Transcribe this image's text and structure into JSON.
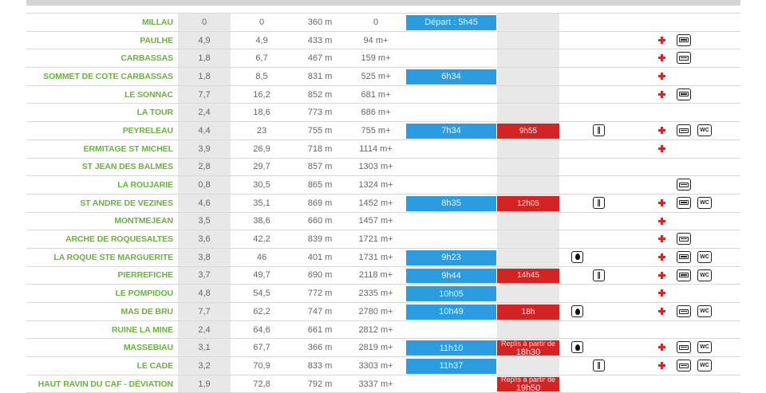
{
  "rows": [
    {
      "name": "MILLAU",
      "d1": "0",
      "d2": "0",
      "alt": "360 m",
      "dplus": "0",
      "time": "Départ : 5h45",
      "barrier": "",
      "drop": false,
      "fork": false,
      "cross": false,
      "bus": false,
      "wc": false
    },
    {
      "name": "PAULHE",
      "d1": "4,9",
      "d2": "4,9",
      "alt": "433 m",
      "dplus": "94 m+",
      "time": "",
      "barrier": "",
      "drop": false,
      "fork": false,
      "cross": true,
      "bus": true,
      "wc": false
    },
    {
      "name": "CARBASSAS",
      "d1": "1,8",
      "d2": "6,7",
      "alt": "467 m",
      "dplus": "159 m+",
      "time": "",
      "barrier": "",
      "drop": false,
      "fork": false,
      "cross": true,
      "bus": true,
      "wc": false
    },
    {
      "name": "SOMMET DE COTE CARBASSAS",
      "d1": "1,8",
      "d2": "8,5",
      "alt": "831 m",
      "dplus": "525 m+",
      "time": "6h34",
      "barrier": "",
      "drop": false,
      "fork": false,
      "cross": true,
      "bus": false,
      "wc": false
    },
    {
      "name": "LE SONNAC",
      "d1": "7,7",
      "d2": "16,2",
      "alt": "852 m",
      "dplus": "681 m+",
      "time": "",
      "barrier": "",
      "drop": false,
      "fork": false,
      "cross": true,
      "bus": true,
      "wc": false
    },
    {
      "name": "LA TOUR",
      "d1": "2,4",
      "d2": "18,6",
      "alt": "773 m",
      "dplus": "686 m+",
      "time": "",
      "barrier": "",
      "drop": false,
      "fork": false,
      "cross": false,
      "bus": false,
      "wc": false
    },
    {
      "name": "PEYRELEAU",
      "d1": "4,4",
      "d2": "23",
      "alt": "755 m",
      "dplus": "755 m+",
      "time": "7h34",
      "barrier": "9h55",
      "drop": false,
      "fork": true,
      "cross": true,
      "bus": true,
      "wc": true
    },
    {
      "name": "ERMITAGE ST MICHEL",
      "d1": "3,9",
      "d2": "26,9",
      "alt": "718 m",
      "dplus": "1114 m+",
      "time": "",
      "barrier": "",
      "drop": false,
      "fork": false,
      "cross": true,
      "bus": false,
      "wc": false
    },
    {
      "name": "ST JEAN DES BALMES",
      "d1": "2,8",
      "d2": "29,7",
      "alt": "857 m",
      "dplus": "1303 m+",
      "time": "",
      "barrier": "",
      "drop": false,
      "fork": false,
      "cross": false,
      "bus": false,
      "wc": false
    },
    {
      "name": "LA ROUJARIE",
      "d1": "0,8",
      "d2": "30,5",
      "alt": "865 m",
      "dplus": "1324 m+",
      "time": "",
      "barrier": "",
      "drop": false,
      "fork": false,
      "cross": false,
      "bus": true,
      "wc": false
    },
    {
      "name": "ST ANDRE DE VEZINES",
      "d1": "4,6",
      "d2": "35,1",
      "alt": "869 m",
      "dplus": "1452 m+",
      "time": "8h35",
      "barrier": "12h05",
      "drop": false,
      "fork": true,
      "cross": true,
      "bus": true,
      "wc": true
    },
    {
      "name": "MONTMEJEAN",
      "d1": "3,5",
      "d2": "38,6",
      "alt": "660 m",
      "dplus": "1457 m+",
      "time": "",
      "barrier": "",
      "drop": false,
      "fork": false,
      "cross": true,
      "bus": false,
      "wc": false
    },
    {
      "name": "ARCHE DE ROQUESALTES",
      "d1": "3,6",
      "d2": "42,2",
      "alt": "839 m",
      "dplus": "1721 m+",
      "time": "",
      "barrier": "",
      "drop": false,
      "fork": false,
      "cross": true,
      "bus": true,
      "wc": false
    },
    {
      "name": "LA ROQUE STE MARGUERITE",
      "d1": "3,8",
      "d2": "46",
      "alt": "401 m",
      "dplus": "1731 m+",
      "time": "9h23",
      "barrier": "",
      "drop": true,
      "fork": false,
      "cross": true,
      "bus": true,
      "wc": true
    },
    {
      "name": "PIERREFICHE",
      "d1": "3,7",
      "d2": "49,7",
      "alt": "690 m",
      "dplus": "2118 m+",
      "time": "9h44",
      "barrier": "14h45",
      "drop": false,
      "fork": true,
      "cross": true,
      "bus": true,
      "wc": true
    },
    {
      "name": "LE POMPIDOU",
      "d1": "4,8",
      "d2": "54,5",
      "alt": "772 m",
      "dplus": "2335 m+",
      "time": "10h05",
      "barrier": "",
      "drop": false,
      "fork": false,
      "cross": true,
      "bus": false,
      "wc": false
    },
    {
      "name": "MAS DE BRU",
      "d1": "7,7",
      "d2": "62,2",
      "alt": "747 m",
      "dplus": "2780 m+",
      "time": "10h49",
      "barrier": "18h",
      "drop": true,
      "fork": false,
      "cross": true,
      "bus": true,
      "wc": true
    },
    {
      "name": "RUINE LA MINE",
      "d1": "2,4",
      "d2": "64,6",
      "alt": "661 m",
      "dplus": "2812 m+",
      "time": "",
      "barrier": "",
      "drop": false,
      "fork": false,
      "cross": false,
      "bus": false,
      "wc": false
    },
    {
      "name": "MASSEBIAU",
      "d1": "3,1",
      "d2": "67,7",
      "alt": "366 m",
      "dplus": "2819 m+",
      "time": "11h10",
      "barrier": "Replis à partir de|18h30",
      "drop": true,
      "fork": false,
      "cross": true,
      "bus": true,
      "wc": true
    },
    {
      "name": "LE CADE",
      "d1": "3,2",
      "d2": "70,9",
      "alt": "833 m",
      "dplus": "3303 m+",
      "time": "11h37",
      "barrier": "",
      "drop": false,
      "fork": true,
      "cross": true,
      "bus": true,
      "wc": true
    },
    {
      "name": "HAUT RAVIN DU CAF - DÉVIATION",
      "d1": "1,9",
      "d2": "72,8",
      "alt": "792 m",
      "dplus": "3337 m+",
      "time": "",
      "barrier": "Replis à partir de|19h50",
      "drop": false,
      "fork": false,
      "cross": false,
      "bus": false,
      "wc": false
    }
  ],
  "wc_label": "WC",
  "icons": {
    "drop": "water-drop-icon",
    "fork": "restaurant-icon",
    "cross": "first-aid-icon",
    "bus": "shuttle-bus-icon",
    "wc": "wc-icon"
  },
  "colors": {
    "name_green": "#6ab23e",
    "time_blue": "#2c9ce0",
    "barrier_red": "#d42323",
    "first_aid_red": "#e02222"
  }
}
